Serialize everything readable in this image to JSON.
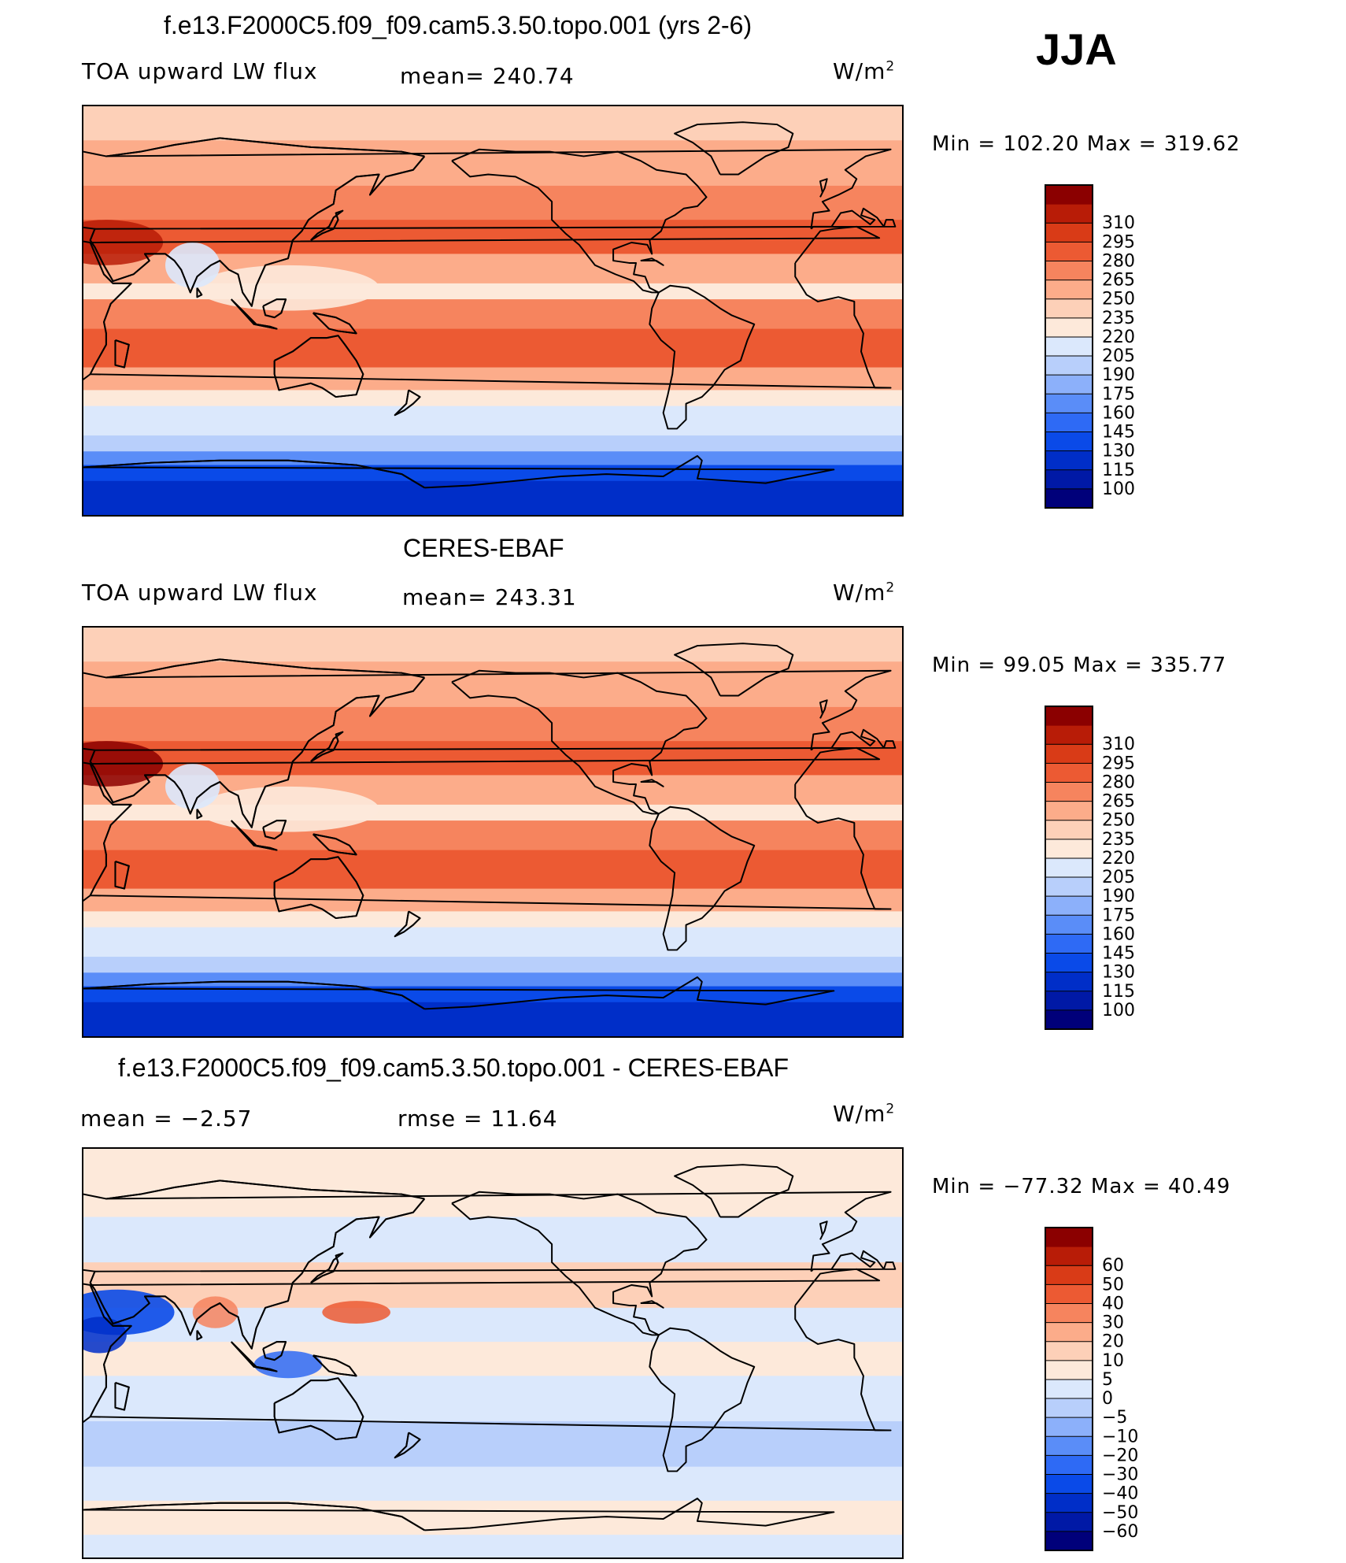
{
  "season": "JJA",
  "colors": {
    "plot1": [
      "#00007a",
      "#0019a6",
      "#002ec8",
      "#0a4ae8",
      "#2e6af5",
      "#5a8df8",
      "#8cb0fa",
      "#b8cffb",
      "#dbe8fc",
      "#fde9da",
      "#fdd0b8",
      "#fcac8a",
      "#f6845e",
      "#ec5a33",
      "#d93b17",
      "#b81c07",
      "#8b0000"
    ],
    "plot3": [
      "#00007a",
      "#0019a6",
      "#002ec8",
      "#0a4ae8",
      "#2e6af5",
      "#5a8df8",
      "#8cb0fa",
      "#b8cffb",
      "#dbe8fc",
      "#fde9da",
      "#fdd0b8",
      "#fcac8a",
      "#f6845e",
      "#ec5a33",
      "#d93b17",
      "#b81c07",
      "#8b0000"
    ]
  },
  "panels": [
    {
      "title": "f.e13.F2000C5.f09_f09.cam5.3.50.topo.001 (yrs 2-6)",
      "left": "TOA upward LW flux",
      "center": "mean=  240.74",
      "units_base": "W/m",
      "units_exp": "2",
      "minmax": "Min  =  102.20  Max  =  319.62",
      "colorbar_levels": [
        "100",
        "115",
        "130",
        "145",
        "160",
        "175",
        "190",
        "205",
        "220",
        "235",
        "250",
        "265",
        "280",
        "295",
        "310"
      ],
      "field": "model"
    },
    {
      "title": "CERES-EBAF",
      "left": "TOA upward LW flux",
      "center": "mean=  243.31",
      "units_base": "W/m",
      "units_exp": "2",
      "minmax": "Min  =   99.05  Max  =  335.77",
      "colorbar_levels": [
        "100",
        "115",
        "130",
        "145",
        "160",
        "175",
        "190",
        "205",
        "220",
        "235",
        "250",
        "265",
        "280",
        "295",
        "310"
      ],
      "field": "obs"
    },
    {
      "title": "f.e13.F2000C5.f09_f09.cam5.3.50.topo.001 - CERES-EBAF",
      "left": "mean  =    −2.57",
      "center": "rmse  =    11.64",
      "units_base": "W/m",
      "units_exp": "2",
      "minmax": "Min  =  −77.32  Max  =    40.49",
      "colorbar_levels": [
        "−60",
        "−50",
        "−40",
        "−30",
        "−20",
        "−10",
        "−5",
        "0",
        "5",
        "10",
        "20",
        "30",
        "40",
        "50",
        "60"
      ],
      "field": "diff"
    }
  ]
}
